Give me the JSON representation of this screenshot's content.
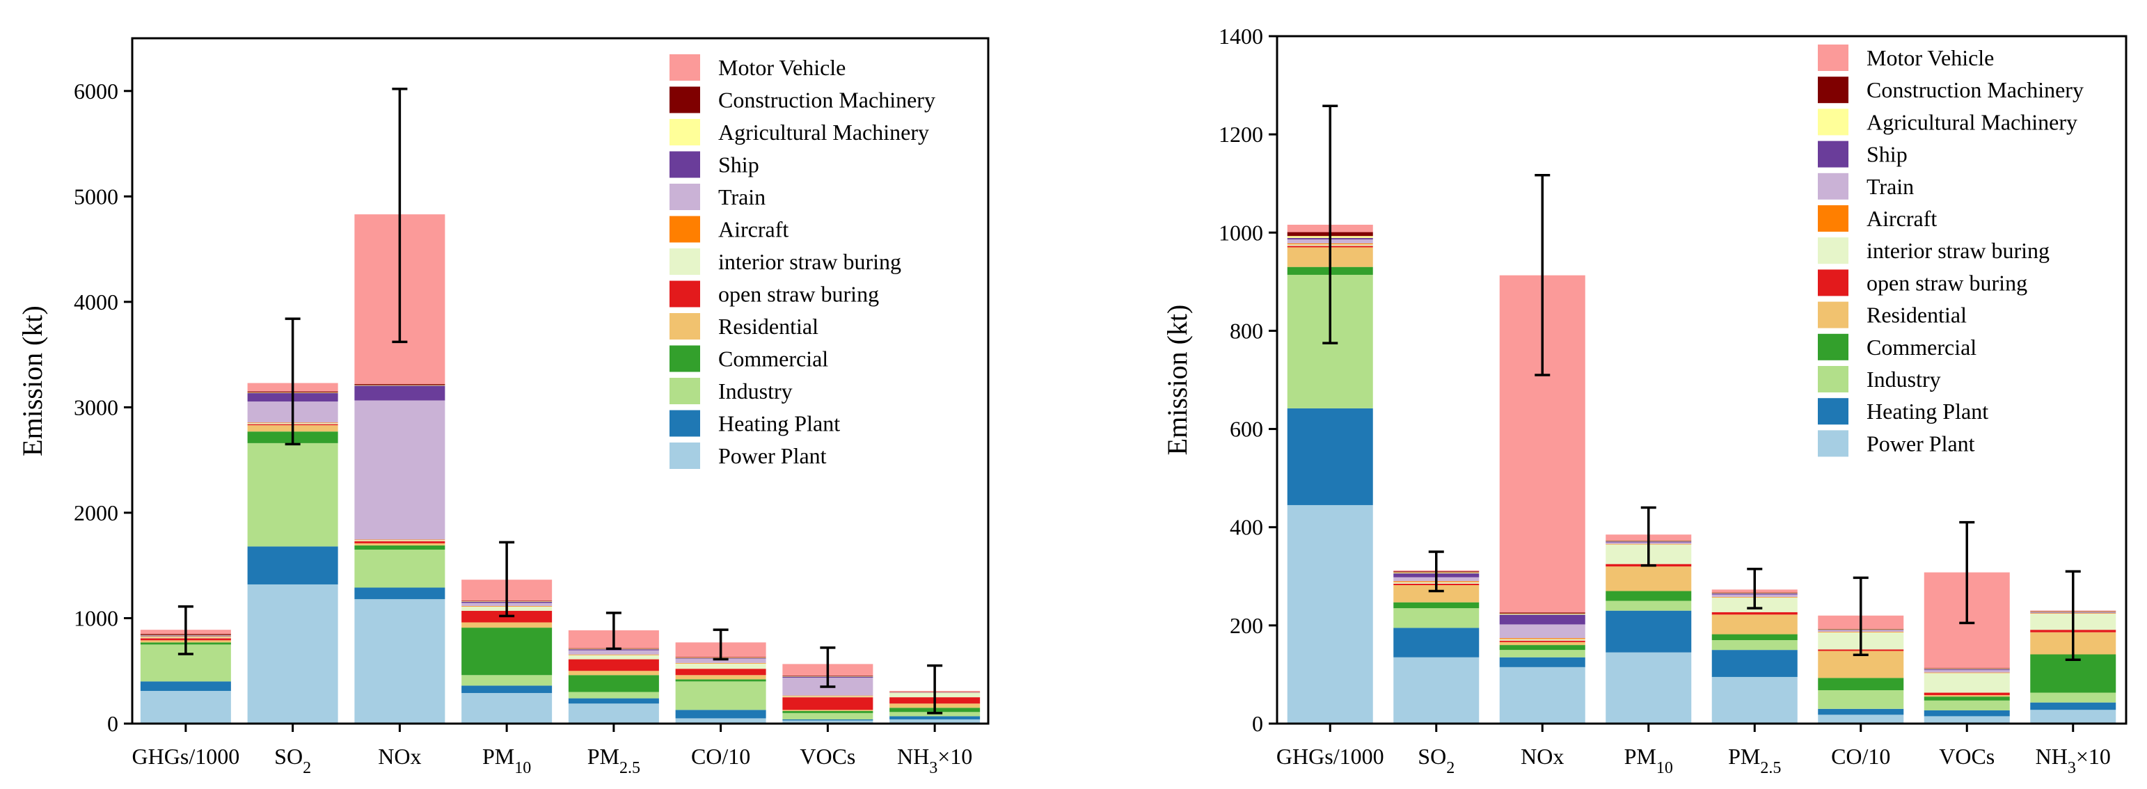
{
  "colors": {
    "Power Plant": "#a6cee3",
    "Heating Plant": "#1f78b4",
    "Industry": "#b2df8a",
    "Commercial": "#33a02c",
    "Residential": "#f1c26f",
    "open straw buring": "#e31a1c",
    "interior straw buring": "#e6f5c9",
    "Aircraft": "#ff7f00",
    "Train": "#cab2d6",
    "Ship": "#6a3d9a",
    "Agricultural Machinery": "#ffff99",
    "Construction Machinery": "#7f0000",
    "Motor Vehicle": "#fb9a99"
  },
  "chart_data": [
    {
      "type": "bar",
      "stacked": true,
      "title": "",
      "xlabel": "",
      "ylabel": "Emission (kt)",
      "ylim": [
        0,
        6500
      ],
      "yticks": [
        0,
        1000,
        2000,
        3000,
        4000,
        5000,
        6000
      ],
      "legend_position": "top-right",
      "categories": [
        "GHGs/1000",
        "SO2",
        "NOx",
        "PM10",
        "PM2.5",
        "CO/10",
        "VOCs",
        "NH3×10"
      ],
      "series": [
        {
          "name": "Power Plant",
          "values": [
            310,
            1320,
            1180,
            290,
            190,
            50,
            30,
            40
          ]
        },
        {
          "name": "Heating Plant",
          "values": [
            90,
            360,
            110,
            70,
            50,
            80,
            10,
            30
          ]
        },
        {
          "name": "Industry",
          "values": [
            350,
            980,
            360,
            100,
            60,
            270,
            60,
            40
          ]
        },
        {
          "name": "Commercial",
          "values": [
            20,
            110,
            40,
            450,
            160,
            20,
            20,
            40
          ]
        },
        {
          "name": "Residential",
          "values": [
            20,
            60,
            20,
            50,
            40,
            40,
            10,
            40
          ]
        },
        {
          "name": "open straw buring",
          "values": [
            20,
            10,
            20,
            110,
            110,
            60,
            120,
            60
          ]
        },
        {
          "name": "interior straw buring",
          "values": [
            10,
            10,
            10,
            40,
            40,
            50,
            10,
            40
          ]
        },
        {
          "name": "Aircraft",
          "values": [
            5,
            5,
            5,
            5,
            5,
            5,
            5,
            2
          ]
        },
        {
          "name": "Train",
          "values": [
            5,
            200,
            1320,
            30,
            40,
            40,
            170,
            2
          ]
        },
        {
          "name": "Ship",
          "values": [
            5,
            80,
            140,
            10,
            10,
            5,
            10,
            2
          ]
        },
        {
          "name": "Agricultural Machinery",
          "values": [
            5,
            5,
            5,
            5,
            5,
            5,
            5,
            2
          ]
        },
        {
          "name": "Construction Machinery",
          "values": [
            10,
            10,
            10,
            5,
            5,
            5,
            5,
            2
          ]
        },
        {
          "name": "Motor Vehicle",
          "values": [
            40,
            80,
            1610,
            200,
            170,
            140,
            110,
            10
          ]
        }
      ],
      "error_bars": [
        {
          "low": 660,
          "high": 1110
        },
        {
          "low": 2650,
          "high": 3840
        },
        {
          "low": 3620,
          "high": 6020
        },
        {
          "low": 1020,
          "high": 1720
        },
        {
          "low": 710,
          "high": 1050
        },
        {
          "low": 610,
          "high": 890
        },
        {
          "low": 350,
          "high": 720
        },
        {
          "low": 100,
          "high": 550
        }
      ]
    },
    {
      "type": "bar",
      "stacked": true,
      "title": "",
      "xlabel": "",
      "ylabel": "Emission (kt)",
      "ylim": [
        0,
        1400
      ],
      "yticks": [
        0,
        200,
        400,
        600,
        800,
        1000,
        1200,
        1400
      ],
      "legend_position": "top-right",
      "categories": [
        "GHGs/1000",
        "SO2",
        "NOx",
        "PM10",
        "PM2.5",
        "CO/10",
        "VOCs",
        "NH3×10"
      ],
      "series": [
        {
          "name": "Power Plant",
          "values": [
            445,
            135,
            115,
            145,
            95,
            18,
            15,
            28
          ]
        },
        {
          "name": "Heating Plant",
          "values": [
            197,
            60,
            20,
            85,
            55,
            12,
            12,
            15
          ]
        },
        {
          "name": "Industry",
          "values": [
            272,
            40,
            15,
            20,
            20,
            38,
            20,
            20
          ]
        },
        {
          "name": "Commercial",
          "values": [
            16,
            12,
            10,
            20,
            12,
            25,
            8,
            78
          ]
        },
        {
          "name": "Residential",
          "values": [
            40,
            35,
            6,
            50,
            40,
            55,
            3,
            45
          ]
        },
        {
          "name": "open straw buring",
          "values": [
            3,
            3,
            3,
            5,
            5,
            3,
            5,
            5
          ]
        },
        {
          "name": "interior straw buring",
          "values": [
            3,
            3,
            3,
            40,
            30,
            35,
            40,
            33
          ]
        },
        {
          "name": "Aircraft",
          "values": [
            2,
            2,
            2,
            1,
            1,
            1,
            1,
            1
          ]
        },
        {
          "name": "Train",
          "values": [
            8,
            8,
            28,
            3,
            5,
            3,
            5,
            1
          ]
        },
        {
          "name": "Ship",
          "values": [
            3,
            8,
            20,
            2,
            2,
            1,
            2,
            1
          ]
        },
        {
          "name": "Agricultural Machinery",
          "values": [
            4,
            2,
            2,
            1,
            1,
            1,
            1,
            1
          ]
        },
        {
          "name": "Construction Machinery",
          "values": [
            8,
            2,
            2,
            1,
            1,
            1,
            1,
            1
          ]
        },
        {
          "name": "Motor Vehicle",
          "values": [
            15,
            2,
            687,
            12,
            6,
            27,
            195,
            1
          ]
        }
      ],
      "error_bars": [
        {
          "low": 775,
          "high": 1258
        },
        {
          "low": 270,
          "high": 350
        },
        {
          "low": 710,
          "high": 1117
        },
        {
          "low": 322,
          "high": 440
        },
        {
          "low": 235,
          "high": 315
        },
        {
          "low": 140,
          "high": 297
        },
        {
          "low": 205,
          "high": 410
        },
        {
          "low": 130,
          "high": 310
        }
      ]
    }
  ]
}
